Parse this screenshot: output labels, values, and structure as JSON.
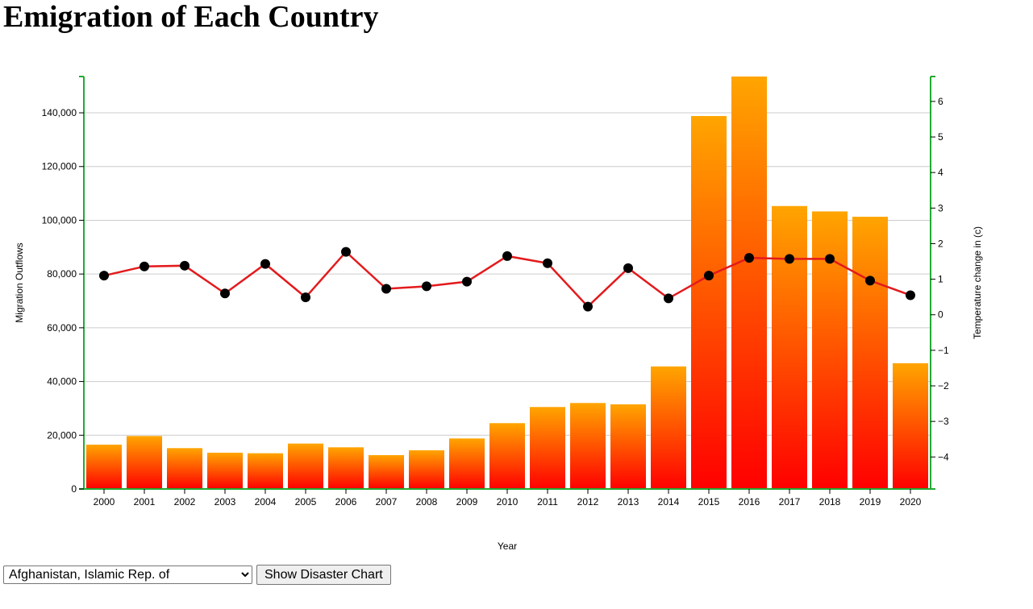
{
  "page": {
    "title": "Emigration of Each Country"
  },
  "controls": {
    "country_selected": "Afghanistan, Islamic Rep. of",
    "button_label": "Show Disaster Chart"
  },
  "colors": {
    "bar_top": "#ffa500",
    "bar_bottom": "#ff0000",
    "line": "#e31a1c",
    "point": "#000000",
    "axis": "#22aa33",
    "grid": "#cccccc"
  },
  "chart_data": {
    "type": "bar",
    "xlabel": "Year",
    "ylabel": "Migration Outflows",
    "y2label": "Temperature change in (c)",
    "categories": [
      "2000",
      "2001",
      "2002",
      "2003",
      "2004",
      "2005",
      "2006",
      "2007",
      "2008",
      "2009",
      "2010",
      "2011",
      "2012",
      "2013",
      "2014",
      "2015",
      "2016",
      "2017",
      "2018",
      "2019",
      "2020"
    ],
    "series": [
      {
        "type": "bar",
        "axis": "left",
        "values": [
          16500,
          19700,
          15200,
          13500,
          13300,
          16900,
          15500,
          12600,
          14400,
          18800,
          24500,
          30500,
          32000,
          31500,
          45600,
          138800,
          153500,
          105300,
          103300,
          101300,
          46800
        ]
      },
      {
        "type": "line",
        "axis": "right",
        "values": [
          1.1,
          1.36,
          1.38,
          0.6,
          1.43,
          0.49,
          1.77,
          0.73,
          0.8,
          0.93,
          1.65,
          1.45,
          0.23,
          1.31,
          0.46,
          1.1,
          1.6,
          1.57,
          1.57,
          0.96,
          0.55
        ]
      }
    ],
    "ylim": [
      0,
      153500
    ],
    "y_ticks": [
      0,
      20000,
      40000,
      60000,
      80000,
      100000,
      120000,
      140000
    ],
    "y_tick_labels": [
      "0",
      "20,000",
      "40,000",
      "60,000",
      "80,000",
      "100,000",
      "120,000",
      "140,000"
    ],
    "y2lim": [
      -4.9,
      6.7
    ],
    "y2_ticks": [
      -4,
      -3,
      -2,
      -1,
      0,
      1,
      2,
      3,
      4,
      5,
      6
    ],
    "y2_tick_labels": [
      "−4",
      "−3",
      "−2",
      "−1",
      "0",
      "1",
      "2",
      "3",
      "4",
      "5",
      "6"
    ],
    "grid": true
  }
}
